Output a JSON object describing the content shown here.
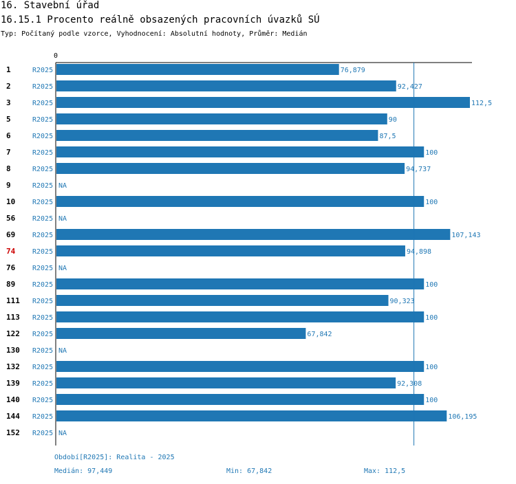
{
  "header": {
    "title": "16. Stavební úřad",
    "subtitle": "16.15.1 Procento reálně obsazených pracovních úvazků SÚ",
    "type_line": "Typ: Počítaný podle vzorce, Vyhodnocení: Absolutní hodnoty, Průměr: Medián"
  },
  "colors": {
    "bar": "#1f77b4",
    "highlight_label": "#cc0000",
    "axis": "#000000"
  },
  "chart_data": {
    "type": "bar",
    "orientation": "horizontal",
    "x_tick_label": "0",
    "xlim": [
      0,
      112.5
    ],
    "period_label": "R2025",
    "highlighted_category": "74",
    "reference_line": {
      "value": 97.449,
      "label": "Medián"
    },
    "rows": [
      {
        "id": "1",
        "value": 76.879,
        "label": "76,879"
      },
      {
        "id": "2",
        "value": 92.427,
        "label": "92,427"
      },
      {
        "id": "3",
        "value": 112.5,
        "label": "112,5"
      },
      {
        "id": "5",
        "value": 90,
        "label": "90"
      },
      {
        "id": "6",
        "value": 87.5,
        "label": "87,5"
      },
      {
        "id": "7",
        "value": 100,
        "label": "100"
      },
      {
        "id": "8",
        "value": 94.737,
        "label": "94,737"
      },
      {
        "id": "9",
        "value": null,
        "label": "NA"
      },
      {
        "id": "10",
        "value": 100,
        "label": "100"
      },
      {
        "id": "56",
        "value": null,
        "label": "NA"
      },
      {
        "id": "69",
        "value": 107.143,
        "label": "107,143"
      },
      {
        "id": "74",
        "value": 94.898,
        "label": "94,898"
      },
      {
        "id": "76",
        "value": null,
        "label": "NA"
      },
      {
        "id": "89",
        "value": 100,
        "label": "100"
      },
      {
        "id": "111",
        "value": 90.323,
        "label": "90,323"
      },
      {
        "id": "113",
        "value": 100,
        "label": "100"
      },
      {
        "id": "122",
        "value": 67.842,
        "label": "67,842"
      },
      {
        "id": "130",
        "value": null,
        "label": "NA"
      },
      {
        "id": "132",
        "value": 100,
        "label": "100"
      },
      {
        "id": "139",
        "value": 92.308,
        "label": "92,308"
      },
      {
        "id": "140",
        "value": 100,
        "label": "100"
      },
      {
        "id": "144",
        "value": 106.195,
        "label": "106,195"
      },
      {
        "id": "152",
        "value": null,
        "label": "NA"
      }
    ]
  },
  "footer": {
    "period": "Období[R2025]: Realita - 2025",
    "median": "Medián: 97,449",
    "min": "Min: 67,842",
    "max": "Max: 112,5"
  }
}
